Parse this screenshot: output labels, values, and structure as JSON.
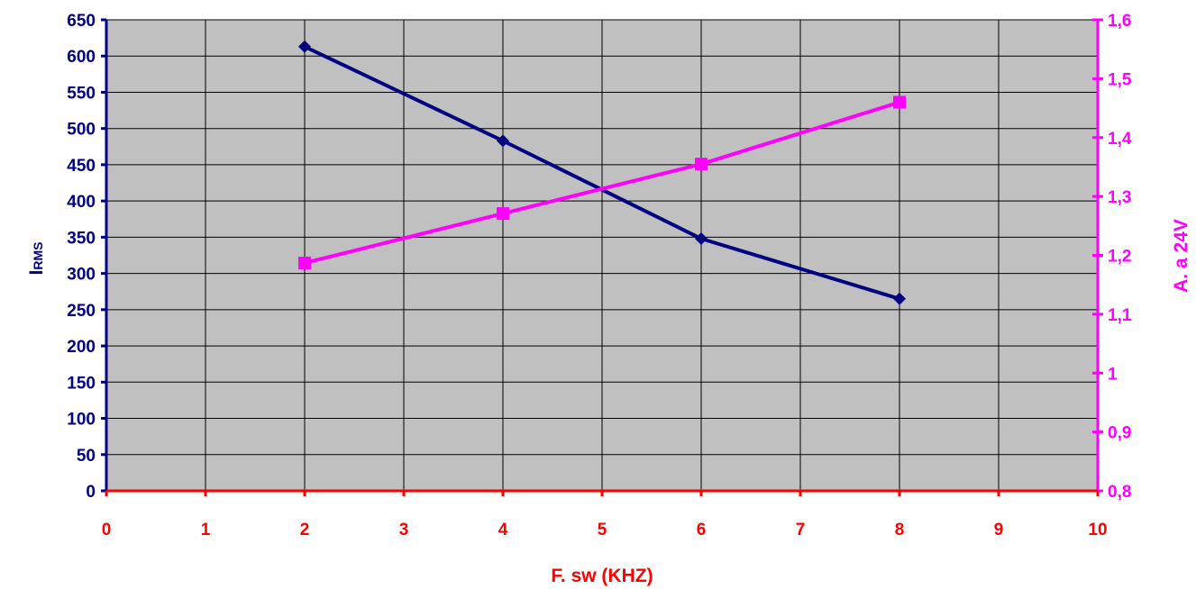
{
  "colors": {
    "plot_background": "#c0c0c0",
    "gridline": "#000000",
    "left_axis": "#000080",
    "right_axis": "#ff00ff",
    "x_axis": "#ff0000",
    "series_irms": "#000080",
    "series_amps": "#ff00ff"
  },
  "chart_data": {
    "type": "line",
    "xlabel": "F. sw (KHZ)",
    "ylabel_left": {
      "main": "I",
      "sub": "RMS"
    },
    "ylabel_right": "A. a 24V",
    "xlim": [
      0,
      10
    ],
    "ylim_left": [
      0,
      650
    ],
    "ylim_right": [
      0.8,
      1.6
    ],
    "grid": true,
    "legend": "none",
    "x_ticks": [
      "0",
      "1",
      "2",
      "3",
      "4",
      "5",
      "6",
      "7",
      "8",
      "9",
      "10"
    ],
    "left_ticks": [
      "0",
      "50",
      "100",
      "150",
      "200",
      "250",
      "300",
      "350",
      "400",
      "450",
      "500",
      "550",
      "600",
      "650"
    ],
    "right_ticks": [
      "0,8",
      "0,9",
      "1",
      "1,1",
      "1,2",
      "1,3",
      "1,4",
      "1,5",
      "1,6"
    ],
    "series": [
      {
        "axis": "left",
        "marker": "diamond",
        "color": "#000080",
        "x": [
          2,
          4,
          6,
          8
        ],
        "values": [
          613,
          483,
          348,
          265
        ]
      },
      {
        "axis": "right",
        "marker": "square",
        "color": "#ff00ff",
        "x": [
          2,
          4,
          6,
          8
        ],
        "values": [
          1.187,
          1.271,
          1.355,
          1.46
        ]
      }
    ]
  }
}
